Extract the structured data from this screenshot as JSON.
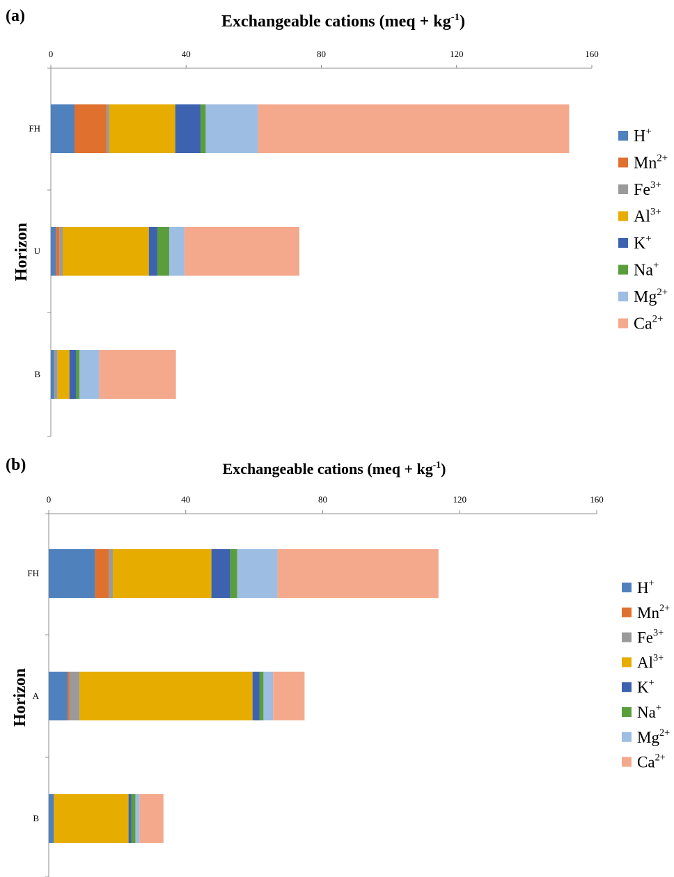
{
  "chart_data": [
    {
      "type": "bar",
      "orientation": "horizontal",
      "stacked": true,
      "panel_label": "(a)",
      "title": "Exchangeable cations (meq + kg",
      "title_superscript": "-1",
      "title_suffix": ")",
      "ylabel": "Horizon",
      "xlim": [
        0,
        160
      ],
      "xticks": [
        "0",
        "40",
        "80",
        "120",
        "160"
      ],
      "categories": [
        "FH",
        "U",
        "B"
      ],
      "legend_position": "right",
      "series": [
        {
          "name": "H",
          "sup": "+",
          "color": "#4F81BD",
          "values": [
            7,
            1.5,
            1
          ]
        },
        {
          "name": "Mn",
          "sup": "2+",
          "color": "#E0702E",
          "values": [
            9.5,
            1,
            0
          ]
        },
        {
          "name": "Fe",
          "sup": "3+",
          "color": "#9A9A9A",
          "values": [
            0.8,
            1,
            1
          ]
        },
        {
          "name": "Al",
          "sup": "3+",
          "color": "#E6AC00",
          "values": [
            19.5,
            25.5,
            3.5
          ]
        },
        {
          "name": "K",
          "sup": "+",
          "color": "#3D62B0",
          "values": [
            7.5,
            2.5,
            2
          ]
        },
        {
          "name": "Na",
          "sup": "+",
          "color": "#5A9E3C",
          "values": [
            1.5,
            3.5,
            1
          ]
        },
        {
          "name": "Mg",
          "sup": "2+",
          "color": "#9DBDE3",
          "values": [
            15.5,
            4.5,
            5.8
          ]
        },
        {
          "name": "Ca",
          "sup": "2+",
          "color": "#F4A98C",
          "values": [
            92,
            34,
            22.7
          ]
        }
      ]
    },
    {
      "type": "bar",
      "orientation": "horizontal",
      "stacked": true,
      "panel_label": "(b)",
      "title": "Exchangeable cations (meq + kg",
      "title_superscript": "-1",
      "title_suffix": ")",
      "ylabel": "Horizon",
      "xlim": [
        0,
        160
      ],
      "xticks": [
        "0",
        "40",
        "80",
        "120",
        "160"
      ],
      "categories": [
        "FH",
        "A",
        "B"
      ],
      "legend_position": "right",
      "series": [
        {
          "name": "H",
          "sup": "+",
          "color": "#4F81BD",
          "values": [
            13.5,
            5.5,
            1.5
          ]
        },
        {
          "name": "Mn",
          "sup": "2+",
          "color": "#E0702E",
          "values": [
            4,
            0.5,
            0
          ]
        },
        {
          "name": "Fe",
          "sup": "3+",
          "color": "#9A9A9A",
          "values": [
            1.2,
            3,
            0
          ]
        },
        {
          "name": "Al",
          "sup": "3+",
          "color": "#E6AC00",
          "values": [
            28.8,
            50.5,
            21.8
          ]
        },
        {
          "name": "K",
          "sup": "+",
          "color": "#3D62B0",
          "values": [
            5.5,
            2,
            0.8
          ]
        },
        {
          "name": "Na",
          "sup": "+",
          "color": "#5A9E3C",
          "values": [
            2,
            1.2,
            1.2
          ]
        },
        {
          "name": "Mg",
          "sup": "2+",
          "color": "#9DBDE3",
          "values": [
            11.8,
            2.8,
            1.2
          ]
        },
        {
          "name": "Ca",
          "sup": "2+",
          "color": "#F4A98C",
          "values": [
            47,
            9.2,
            7
          ]
        }
      ]
    }
  ]
}
